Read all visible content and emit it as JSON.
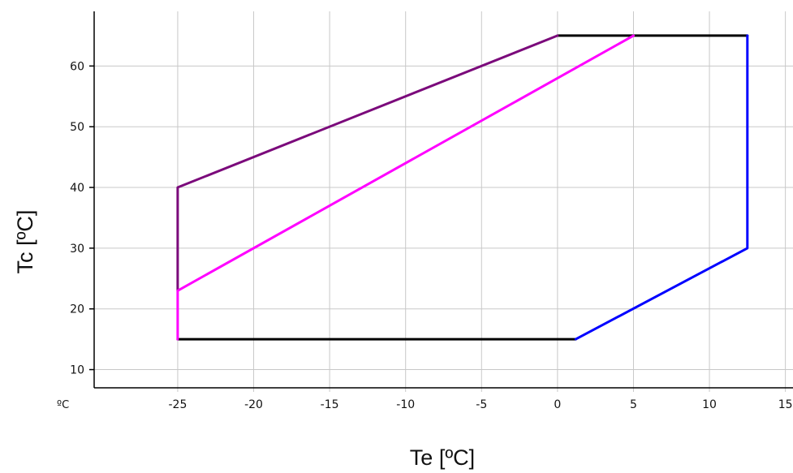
{
  "chart_data": {
    "type": "line",
    "title": "",
    "xlabel": "Te [ºC]",
    "ylabel": "Tc [ºC]",
    "corner_unit": "ºC",
    "xlim": [
      -30.5,
      15.5
    ],
    "ylim": [
      7,
      69
    ],
    "xticks": [
      -25,
      -20,
      -15,
      -10,
      -5,
      0,
      5,
      10,
      15
    ],
    "yticks": [
      10,
      20,
      30,
      40,
      50,
      60
    ],
    "x_tick_labels": [
      "-25",
      "-20",
      "-15",
      "-10",
      "-5",
      "0",
      "5",
      "10",
      "15"
    ],
    "y_tick_labels": [
      "10",
      "20",
      "30",
      "40",
      "50",
      "60"
    ],
    "grid": true,
    "grid_color": "#c8c8c8",
    "axis_color": "#000000",
    "series": [
      {
        "color": "#000000",
        "x": [
          1.2,
          -25
        ],
        "y": [
          15,
          15
        ]
      },
      {
        "color": "#000000",
        "x": [
          0,
          12.5
        ],
        "y": [
          65,
          65
        ]
      },
      {
        "color": "#0000ff",
        "x": [
          1.2,
          12.5,
          12.5
        ],
        "y": [
          15,
          30,
          65
        ]
      },
      {
        "color": "#7b0a7b",
        "x": [
          -25,
          -25,
          0
        ],
        "y": [
          23,
          40,
          65
        ]
      },
      {
        "color": "#ff00ff",
        "x": [
          -25,
          -25,
          5
        ],
        "y": [
          15,
          23,
          65
        ]
      }
    ]
  }
}
